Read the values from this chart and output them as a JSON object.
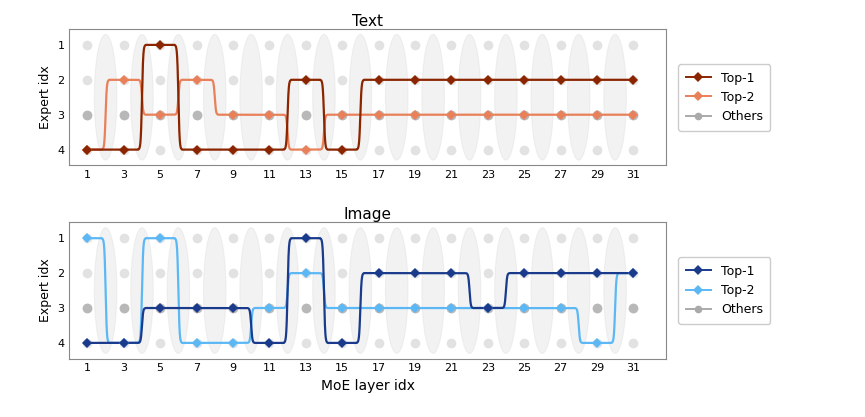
{
  "layers": [
    1,
    3,
    5,
    7,
    9,
    11,
    13,
    15,
    17,
    19,
    21,
    23,
    25,
    27,
    29,
    31
  ],
  "text_top1": [
    4,
    4,
    1,
    4,
    4,
    4,
    2,
    4,
    2,
    2,
    2,
    2,
    2,
    2,
    2,
    2
  ],
  "text_top2": [
    4,
    2,
    3,
    2,
    3,
    3,
    4,
    3,
    3,
    3,
    3,
    3,
    3,
    3,
    3,
    3
  ],
  "image_top1": [
    4,
    4,
    3,
    3,
    3,
    4,
    1,
    4,
    2,
    2,
    2,
    3,
    2,
    2,
    2,
    2
  ],
  "image_top2": [
    1,
    4,
    1,
    4,
    4,
    3,
    2,
    3,
    3,
    3,
    3,
    3,
    3,
    3,
    4,
    2
  ],
  "color_text_top1": "#8B2500",
  "color_text_top2": "#E8805A",
  "color_image_top1": "#1A3A8C",
  "color_image_top2": "#5BB8F5",
  "color_others": "#AAAAAA",
  "color_bg_oval": "#C8C8C8",
  "color_bg_dot": "#C0C0C0",
  "ylim_min": 0.55,
  "ylim_max": 4.45,
  "yticks": [
    1,
    2,
    3,
    4
  ],
  "xticks": [
    1,
    3,
    5,
    7,
    9,
    11,
    13,
    15,
    17,
    19,
    21,
    23,
    25,
    27,
    29,
    31
  ],
  "xlabel": "MoE layer idx",
  "ylabel": "Expert idx",
  "title_text": "Text",
  "title_image": "Image",
  "legend_labels": [
    "Top-1",
    "Top-2",
    "Others"
  ]
}
